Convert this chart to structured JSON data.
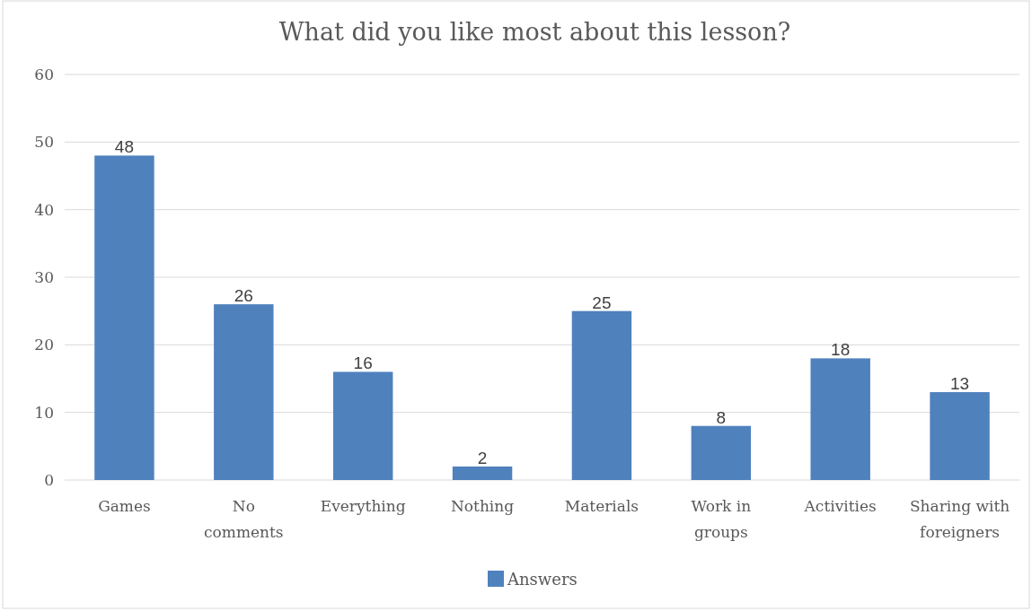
{
  "chart_data": {
    "type": "bar",
    "title": "What did you like most about this lesson?",
    "categories": [
      "Games",
      "No comments",
      "Everything",
      "Nothing",
      "Materials",
      "Work in groups",
      "Activities",
      "Sharing with foreigners"
    ],
    "series": [
      {
        "name": "Answers",
        "color": "#4f81bd",
        "values": [
          48,
          26,
          16,
          2,
          25,
          8,
          18,
          13
        ]
      }
    ],
    "ylim": [
      0,
      60
    ],
    "yticks": [
      0,
      10,
      20,
      30,
      40,
      50,
      60
    ],
    "grid": "y",
    "legend": "bottom",
    "data_labels": true
  }
}
